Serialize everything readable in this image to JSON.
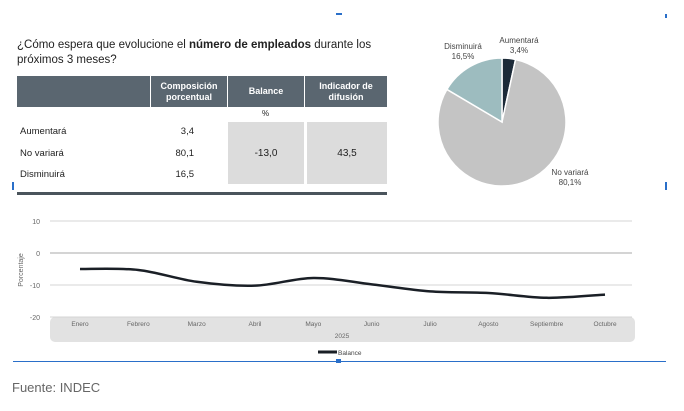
{
  "title": {
    "pre": "¿Cómo espera que evolucione el ",
    "bold": "número de empleados",
    "post": " durante los próximos 3 meses?"
  },
  "table": {
    "headers": [
      "Composición porcentual",
      "Balance",
      "Indicador de difusión"
    ],
    "unit": "%",
    "rows": [
      {
        "label": "Aumentará",
        "value": "3,4"
      },
      {
        "label": "No variará",
        "value": "80,1"
      },
      {
        "label": "Disminuirá",
        "value": "16,5"
      }
    ],
    "balance": "-13,0",
    "indicador": "43,5"
  },
  "chart_data": [
    {
      "type": "pie",
      "slices": [
        {
          "label": "Aumentará",
          "value": 3.4,
          "text": "3,4%",
          "color": "#1c2a38"
        },
        {
          "label": "No variará",
          "value": 80.1,
          "text": "80,1%",
          "color": "#c4c4c4"
        },
        {
          "label": "Disminuirá",
          "value": 16.5,
          "text": "16,5%",
          "color": "#9dbcbf"
        }
      ]
    },
    {
      "type": "line",
      "x": [
        "Enero",
        "Febrero",
        "Marzo",
        "Abril",
        "Mayo",
        "Junio",
        "Julio",
        "Agosto",
        "Septiembre",
        "Octubre"
      ],
      "series": [
        {
          "name": "Balance",
          "values": [
            -5,
            -5.3,
            -9,
            -10.2,
            -7.8,
            -9.8,
            -12,
            -12.5,
            -14,
            -13
          ],
          "color": "#1a1f26"
        }
      ],
      "xlabel": "2025",
      "ylabel": "Porcentaje",
      "ylim": [
        -20,
        10
      ],
      "yticks": [
        10,
        0,
        -10,
        -20
      ],
      "legend": "bottom",
      "grid": true
    }
  ],
  "footer": "Fuente: INDEC"
}
